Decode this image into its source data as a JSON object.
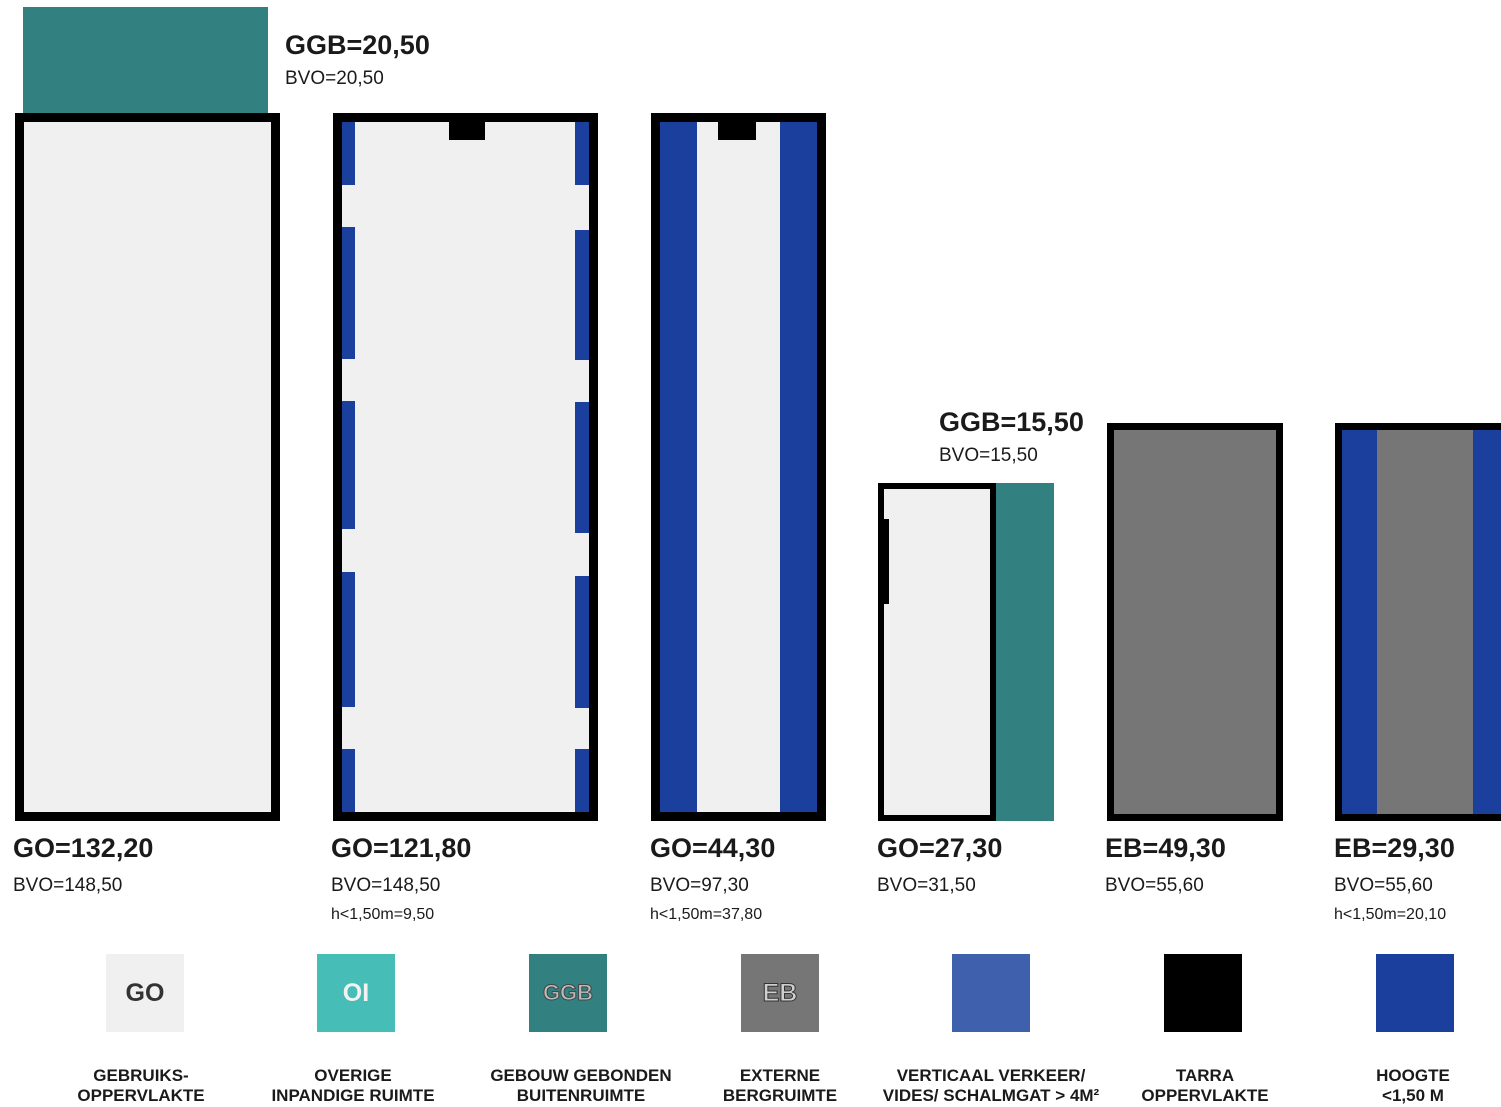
{
  "colors": {
    "go": "#f0f0f0",
    "oi": "#47bdb8",
    "ggb": "#338080",
    "eb": "#767676",
    "verticaal": "#3f61ad",
    "tarra": "#000000",
    "hoogte": "#1a3f9c"
  },
  "blocks": [
    {
      "top_label": "GGB=20,50",
      "top_sub": "BVO=20,50",
      "main": "GO=132,20",
      "sub": "BVO=148,50"
    },
    {
      "main": "GO=121,80",
      "sub": "BVO=148,50",
      "sub2": "h<1,50m=9,50"
    },
    {
      "main": "GO=44,30",
      "sub": "BVO=97,30",
      "sub2": "h<1,50m=37,80"
    },
    {
      "top_label": "GGB=15,50",
      "top_sub": "BVO=15,50",
      "main": "GO=27,30",
      "sub": "BVO=31,50"
    },
    {
      "main": "EB=49,30",
      "sub": "BVO=55,60"
    },
    {
      "main": "EB=29,30",
      "sub": "BVO=55,60",
      "sub2": "h<1,50m=20,10"
    }
  ],
  "legend": [
    {
      "code": "GO",
      "text": "GEBRUIKS-\nOPPERVLAKTE",
      "icon": "go-swatch"
    },
    {
      "code": "OI",
      "text": "OVERIGE\nINPANDIGE RUIMTE",
      "icon": "oi-swatch"
    },
    {
      "code": "GGB",
      "text": "GEBOUW GEBONDEN\nBUITENRUIMTE",
      "icon": "ggb-swatch"
    },
    {
      "code": "EB",
      "text": "EXTERNE\nBERGRUIMTE",
      "icon": "eb-swatch"
    },
    {
      "code": "",
      "text": "VERTICAAL VERKEER/\nVIDES/ SCHALMGAT > 4M²",
      "icon": "verticaal-swatch"
    },
    {
      "code": "",
      "text": "TARRA\nOPPERVLAKTE",
      "icon": "tarra-swatch"
    },
    {
      "code": "",
      "text": "HOOGTE\n<1,50 M",
      "icon": "hoogte-swatch"
    }
  ]
}
